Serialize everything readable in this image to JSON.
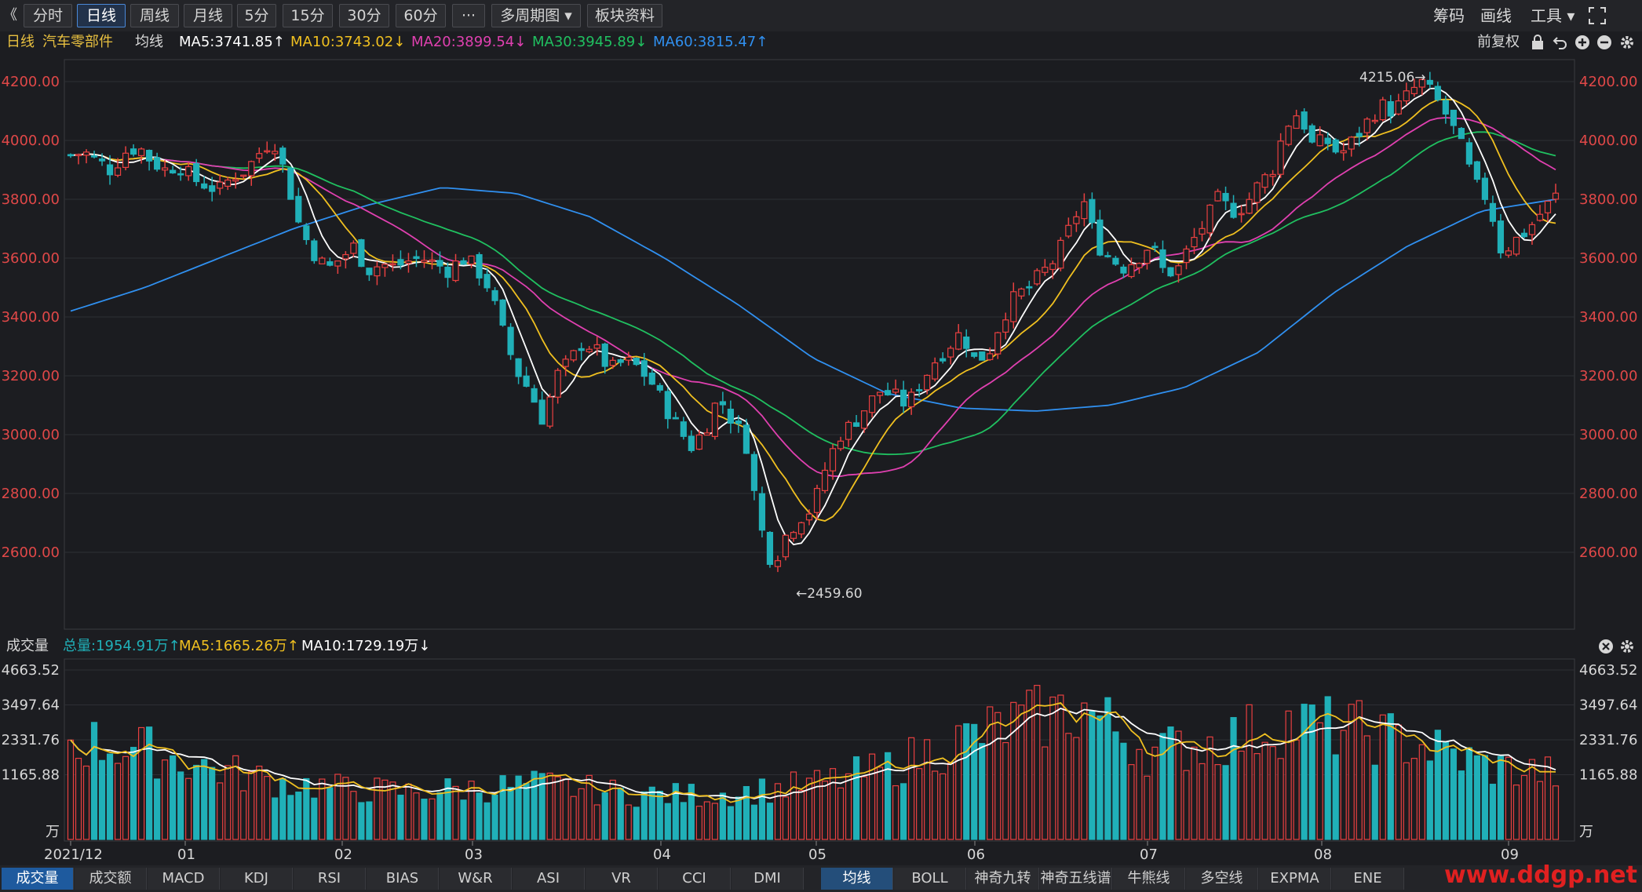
{
  "toolbar": {
    "back_icon": "double-chevron-left-icon",
    "back_glyph": "《",
    "buttons": [
      "分时",
      "日线",
      "周线",
      "月线",
      "5分",
      "15分",
      "30分",
      "60分",
      "···",
      "多周期图 ▾",
      "板块资料"
    ],
    "active": "日线",
    "right": {
      "chips": "筹码",
      "draw": "画线",
      "tools": "工具 ▾"
    },
    "fullscreen_icon": "fullscreen-icon"
  },
  "ma_bar": {
    "period": "日线",
    "name": "汽车零部件",
    "indicator": "均线",
    "ma5": "MA5:3741.85↑",
    "ma10": "MA10:3743.02↓",
    "ma20": "MA20:3899.54↓",
    "ma30": "MA30:3945.89↓",
    "ma60": "MA60:3815.47↑",
    "adjust": "前复权",
    "colors": {
      "ma5": "#ffffff",
      "ma10": "#f0c020",
      "ma20": "#e040b0",
      "ma30": "#20c060",
      "ma60": "#3090f0",
      "up": "#e84040",
      "down": "#20b0b8"
    }
  },
  "price_axis": {
    "labels": [
      "4200.00",
      "4000.00",
      "3800.00",
      "3600.00",
      "3400.00",
      "3200.00",
      "3000.00",
      "2800.00",
      "2600.00"
    ]
  },
  "annotations": {
    "high": "4215.06→",
    "low": "←2459.60"
  },
  "vol_bar": {
    "title": "成交量",
    "total": "总量:1954.91万↑",
    "ma5": "MA5:1665.26万↑",
    "ma10": "MA10:1729.19万↓"
  },
  "vol_axis": {
    "labels": [
      "4663.52",
      "3497.64",
      "2331.76",
      "1165.88"
    ],
    "unit": "万"
  },
  "x_axis": {
    "labels": [
      "2021/12",
      "01",
      "02",
      "03",
      "04",
      "05",
      "06",
      "07",
      "08",
      "09"
    ]
  },
  "bottom_tabs": {
    "left": [
      "成交量",
      "成交额",
      "MACD",
      "KDJ",
      "RSI",
      "BIAS",
      "W&R",
      "ASI",
      "VR",
      "CCI",
      "DMI"
    ],
    "right": [
      "均线",
      "BOLL",
      "神奇九转",
      "神奇五线谱",
      "牛熊线",
      "多空线",
      "EXPMA",
      "ENE"
    ]
  },
  "watermark": "www.ddgp.net",
  "chart_data": {
    "type": "candlestick",
    "title": "汽车零部件 日线",
    "x": [
      "2021/12",
      "01",
      "02",
      "03",
      "04",
      "05",
      "06",
      "07",
      "08",
      "09"
    ],
    "ylim": [
      2480,
      4320
    ],
    "close_path": [
      3950,
      3960,
      3930,
      3900,
      3960,
      3980,
      3930,
      3900,
      3920,
      3870,
      3850,
      3830,
      3880,
      3900,
      3960,
      4010,
      3870,
      3700,
      3620,
      3560,
      3600,
      3640,
      3560,
      3580,
      3570,
      3590,
      3600,
      3580,
      3560,
      3600,
      3570,
      3500,
      3350,
      3220,
      3150,
      3050,
      3200,
      3250,
      3320,
      3280,
      3220,
      3250,
      3230,
      3180,
      3100,
      3020,
      2960,
      3020,
      3130,
      3050,
      2980,
      2700,
      2560,
      2660,
      2720,
      2750,
      2900,
      3000,
      3040,
      3100,
      3150,
      3130,
      3100,
      3180,
      3250,
      3300,
      3350,
      3250,
      3280,
      3400,
      3470,
      3500,
      3550,
      3600,
      3700,
      3800,
      3650,
      3600,
      3570,
      3600,
      3650,
      3550,
      3560,
      3650,
      3720,
      3800,
      3760,
      3780,
      3850,
      3900,
      4050,
      4100,
      3980,
      4000,
      3950,
      4000,
      4060,
      4120,
      4100,
      4150,
      4200,
      4150,
      4080,
      3980,
      3850,
      3800,
      3620,
      3660,
      3700,
      3760,
      3810
    ],
    "ma60_path": [
      3420,
      3500,
      3600,
      3700,
      3780,
      3840,
      3820,
      3740,
      3600,
      3440,
      3260,
      3140,
      3090,
      3080,
      3100,
      3160,
      3280,
      3480,
      3640,
      3760,
      3800
    ]
  }
}
